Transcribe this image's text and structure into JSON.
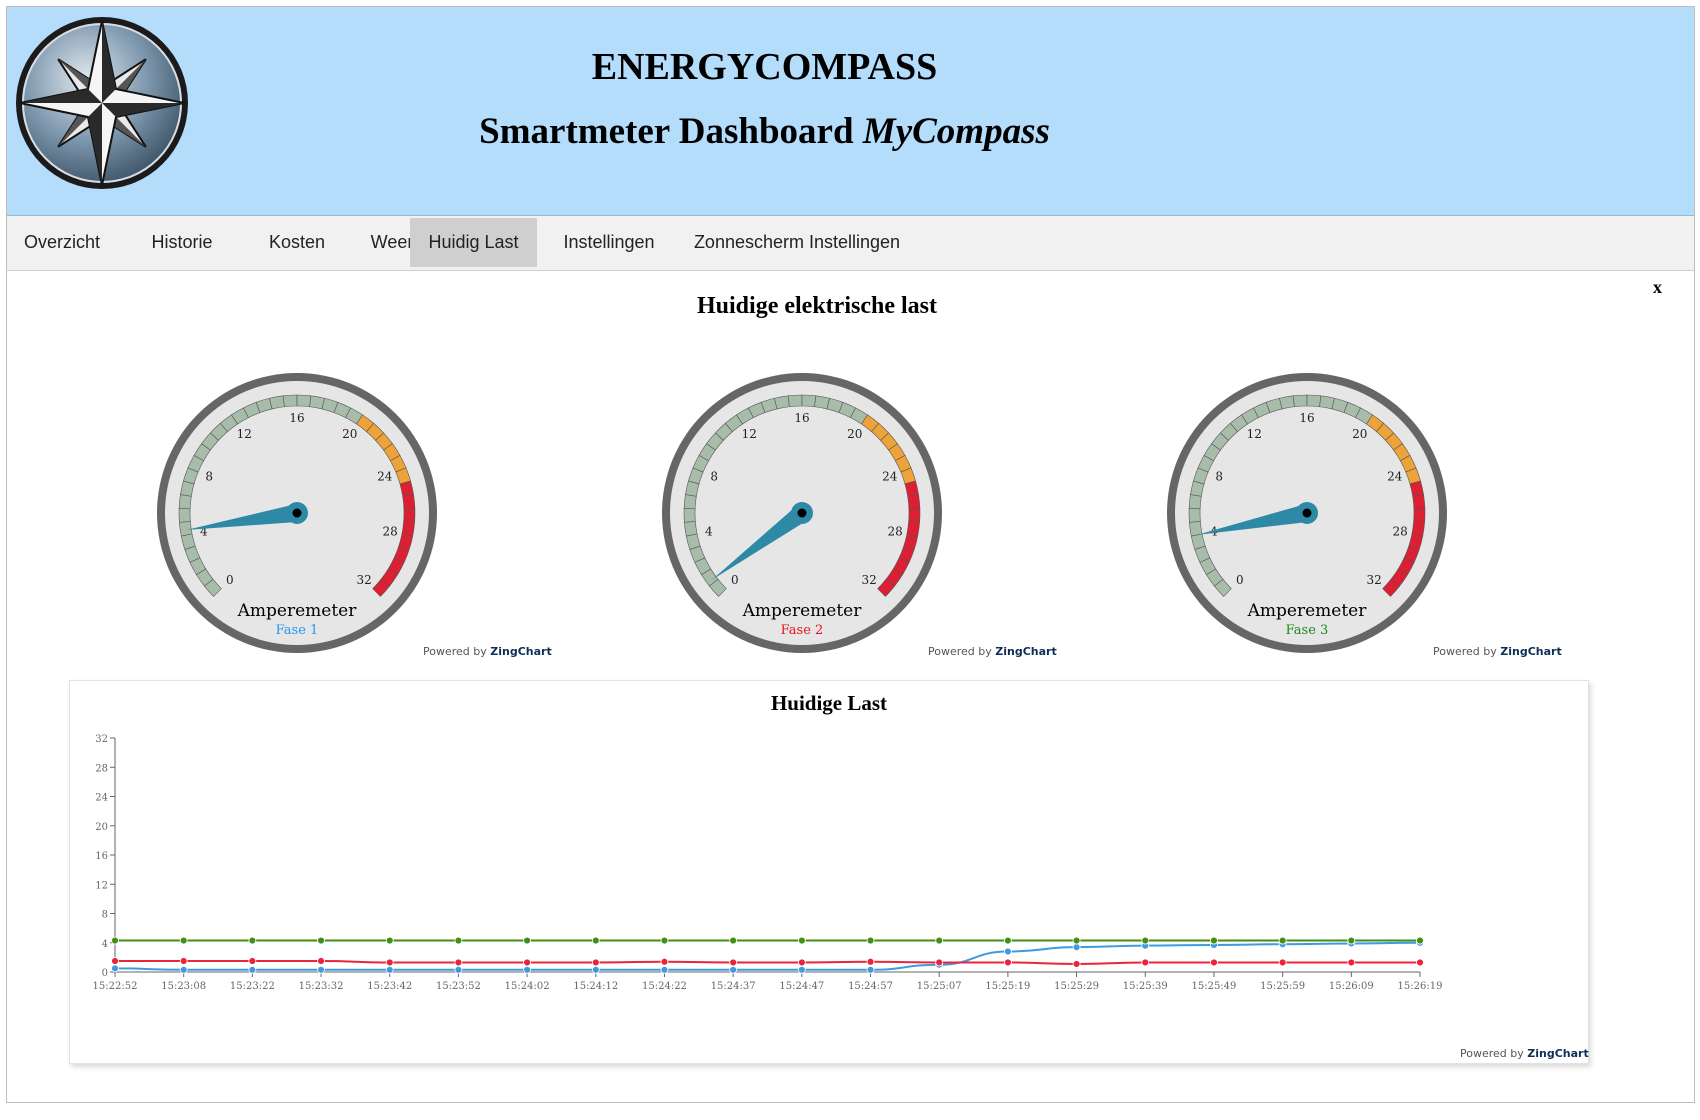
{
  "header": {
    "title": "ENERGYCOMPASS",
    "subtitle_main": "Smartmeter Dashboard ",
    "subtitle_italic": "MyCompass"
  },
  "nav": {
    "tabs": [
      {
        "label": "Overzicht",
        "active": false
      },
      {
        "label": "Historie",
        "active": false
      },
      {
        "label": "Kosten",
        "active": false
      },
      {
        "label": "Weer",
        "active": false
      },
      {
        "label": "Huidig Last",
        "active": true
      },
      {
        "label": "Instellingen",
        "active": false
      },
      {
        "label": "Zonnescherm Instellingen",
        "active": false
      }
    ]
  },
  "close_label": "x",
  "section_title": "Huidige elektrische last",
  "gauges": [
    {
      "title": "Amperemeter",
      "subtitle": "Fase 1",
      "subtitle_color": "#2196f3",
      "value": 4.3
    },
    {
      "title": "Amperemeter",
      "subtitle": "Fase 2",
      "subtitle_color": "#e8111c",
      "value": 1.0
    },
    {
      "title": "Amperemeter",
      "subtitle": "Fase 3",
      "subtitle_color": "#1a8a1a",
      "value": 4.0
    }
  ],
  "gauge_scale": {
    "min": 0,
    "max": 32,
    "tick_labels": [
      "0",
      "4",
      "8",
      "12",
      "16",
      "20",
      "24",
      "28",
      "32"
    ],
    "zones": [
      {
        "from": 0,
        "to": 20,
        "color": "#a7bda9"
      },
      {
        "from": 20,
        "to": 25,
        "color": "#eea33a"
      },
      {
        "from": 25,
        "to": 32,
        "color": "#dc1f33"
      }
    ],
    "needle_color": "#2e89a6"
  },
  "powered_by": {
    "prefix": "Powered by ",
    "brand": "ZingChart"
  },
  "chart_data": {
    "type": "line",
    "title": "Huidige Last",
    "xlabel": "",
    "ylabel": "",
    "ylim": [
      0,
      32
    ],
    "yticks": [
      0,
      4,
      8,
      12,
      16,
      20,
      24,
      28,
      32
    ],
    "categories": [
      "15:22:52",
      "15:23:08",
      "15:23:22",
      "15:23:32",
      "15:23:42",
      "15:23:52",
      "15:24:02",
      "15:24:12",
      "15:24:22",
      "15:24:37",
      "15:24:47",
      "15:24:57",
      "15:25:07",
      "15:25:19",
      "15:25:29",
      "15:25:39",
      "15:25:49",
      "15:25:59",
      "15:26:09",
      "15:26:19"
    ],
    "series": [
      {
        "color": "#3f9ae0",
        "values": [
          0.5,
          0.3,
          0.3,
          0.3,
          0.3,
          0.3,
          0.3,
          0.3,
          0.3,
          0.3,
          0.3,
          0.3,
          1.0,
          2.8,
          3.4,
          3.6,
          3.7,
          3.8,
          3.9,
          4.0
        ]
      },
      {
        "color": "#e8253b",
        "values": [
          1.5,
          1.5,
          1.5,
          1.5,
          1.3,
          1.3,
          1.3,
          1.3,
          1.4,
          1.3,
          1.3,
          1.4,
          1.3,
          1.3,
          1.1,
          1.3,
          1.3,
          1.3,
          1.3,
          1.3
        ]
      },
      {
        "color": "#3f8f1a",
        "values": [
          4.3,
          4.3,
          4.3,
          4.3,
          4.3,
          4.3,
          4.3,
          4.3,
          4.3,
          4.3,
          4.3,
          4.3,
          4.3,
          4.3,
          4.3,
          4.3,
          4.3,
          4.3,
          4.3,
          4.3
        ]
      }
    ]
  }
}
